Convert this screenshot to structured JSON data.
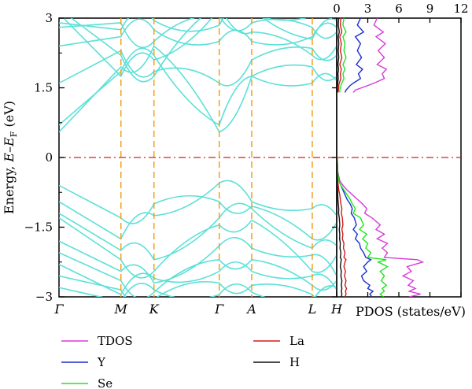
{
  "chart_data": [
    {
      "type": "line",
      "panel": "band structure",
      "ylabel_main": "Energy, ",
      "ylabel_e": "E",
      "ylabel_dash": "–",
      "ylabel_ef": "E",
      "ylabel_sub": "F",
      "ylabel_unit": " (eV)",
      "ylim": [
        -3,
        3
      ],
      "yticks": [
        {
          "value": 3,
          "label": "3"
        },
        {
          "value": 1.5,
          "label": "1.5"
        },
        {
          "value": 0,
          "label": "0"
        },
        {
          "value": -1.5,
          "label": "−1.5"
        },
        {
          "value": -3,
          "label": "−3"
        }
      ],
      "kpath": [
        {
          "label": "Γ",
          "k": 0.0
        },
        {
          "label": "M",
          "k": 0.223
        },
        {
          "label": "K",
          "k": 0.342
        },
        {
          "label": "Γ",
          "k": 0.577
        },
        {
          "label": "A",
          "k": 0.694
        },
        {
          "label": "L",
          "k": 0.912
        },
        {
          "label": "H",
          "k": 1.0
        }
      ],
      "fermi_level": 0,
      "band_color": "#5ce0d8",
      "band_highlights": {
        "conduction_band_minimum": 0.55,
        "valence_band_maximum": -0.55
      }
    },
    {
      "type": "line",
      "panel": "PDOS",
      "xlabel": "PDOS (states/eV)",
      "xlim": [
        0,
        12
      ],
      "xticks": [
        {
          "value": 0,
          "label": "0"
        },
        {
          "value": 3,
          "label": "3"
        },
        {
          "value": 6,
          "label": "6"
        },
        {
          "value": 9,
          "label": "9"
        },
        {
          "value": 12,
          "label": "12"
        }
      ],
      "series": [
        {
          "name": "TDOS",
          "color": "#d83ad8",
          "x": [
            0.05,
            0.1,
            0.3,
            0.6,
            1.0,
            1.5,
            2.0,
            2.5,
            2.9,
            2.7,
            3.4,
            4.2,
            3.8,
            4.6,
            3.9,
            4.9,
            4.4,
            4.9,
            4.6,
            7.8,
            8.3,
            6.8,
            7.2,
            6.4,
            7.4,
            6.9,
            7.6,
            7.0,
            8.1,
            7.0
          ],
          "y": [
            0,
            -0.3,
            -0.5,
            -0.6,
            -0.7,
            -0.8,
            -0.9,
            -1.0,
            -1.1,
            -1.2,
            -1.3,
            -1.45,
            -1.55,
            -1.65,
            -1.75,
            -1.85,
            -1.95,
            -2.05,
            -2.15,
            -2.2,
            -2.25,
            -2.35,
            -2.45,
            -2.55,
            -2.65,
            -2.75,
            -2.82,
            -2.88,
            -2.94,
            -3.0
          ]
        },
        {
          "name": "Y",
          "color": "#1a2fd0",
          "x": [
            0.05,
            0.1,
            0.2,
            0.4,
            0.6,
            0.8,
            1.0,
            1.3,
            1.5,
            1.4,
            1.7,
            1.9,
            1.6,
            2.0,
            1.8,
            2.2,
            2.3,
            2.6,
            2.8,
            3.3,
            3.0,
            2.6,
            2.9,
            2.4,
            2.6,
            3.2,
            3.0,
            3.5,
            3.2,
            3.4
          ],
          "y": [
            0,
            -0.3,
            -0.5,
            -0.6,
            -0.7,
            -0.8,
            -0.9,
            -1.0,
            -1.1,
            -1.2,
            -1.3,
            -1.45,
            -1.55,
            -1.65,
            -1.75,
            -1.85,
            -1.95,
            -2.05,
            -2.15,
            -2.2,
            -2.25,
            -2.35,
            -2.45,
            -2.55,
            -2.65,
            -2.75,
            -2.82,
            -2.88,
            -2.94,
            -3.0
          ]
        },
        {
          "name": "Se",
          "color": "#1ee61e",
          "x": [
            0.05,
            0.1,
            0.2,
            0.4,
            0.7,
            1.0,
            1.3,
            1.5,
            1.8,
            1.6,
            2.3,
            2.6,
            2.2,
            2.9,
            2.5,
            3.0,
            2.8,
            3.3,
            3.0,
            4.8,
            4.0,
            4.9,
            4.2,
            4.6,
            4.3,
            4.8,
            4.4,
            4.6,
            4.2,
            4.5
          ],
          "y": [
            0,
            -0.3,
            -0.5,
            -0.6,
            -0.7,
            -0.8,
            -0.9,
            -1.0,
            -1.1,
            -1.2,
            -1.3,
            -1.45,
            -1.55,
            -1.65,
            -1.75,
            -1.85,
            -1.95,
            -2.05,
            -2.15,
            -2.2,
            -2.25,
            -2.35,
            -2.45,
            -2.55,
            -2.65,
            -2.75,
            -2.82,
            -2.88,
            -2.94,
            -3.0
          ]
        },
        {
          "name": "La",
          "color": "#d41a1a",
          "x": [
            0.02,
            0.05,
            0.1,
            0.15,
            0.2,
            0.3,
            0.35,
            0.4,
            0.5,
            0.45,
            0.55,
            0.6,
            0.5,
            0.6,
            0.55,
            0.7,
            0.65,
            0.8,
            0.7,
            0.9,
            0.8,
            0.7,
            0.85,
            0.75,
            0.9,
            0.8,
            0.95,
            0.85,
            0.9,
            0.8
          ],
          "y": [
            0,
            -0.3,
            -0.5,
            -0.6,
            -0.7,
            -0.8,
            -0.9,
            -1.0,
            -1.1,
            -1.2,
            -1.3,
            -1.45,
            -1.55,
            -1.65,
            -1.75,
            -1.85,
            -1.95,
            -2.05,
            -2.15,
            -2.2,
            -2.25,
            -2.35,
            -2.45,
            -2.55,
            -2.65,
            -2.75,
            -2.82,
            -2.88,
            -2.94,
            -3.0
          ]
        },
        {
          "name": "H",
          "color": "#111111",
          "x": [
            0.01,
            0.02,
            0.03,
            0.05,
            0.08,
            0.1,
            0.12,
            0.15,
            0.2,
            0.18,
            0.25,
            0.3,
            0.25,
            0.3,
            0.28,
            0.35,
            0.32,
            0.4,
            0.35,
            0.45,
            0.4,
            0.35,
            0.45,
            0.4,
            0.5,
            0.45,
            0.5,
            0.45,
            0.5,
            0.45
          ],
          "y": [
            0,
            -0.3,
            -0.5,
            -0.6,
            -0.7,
            -0.8,
            -0.9,
            -1.0,
            -1.1,
            -1.2,
            -1.3,
            -1.45,
            -1.55,
            -1.65,
            -1.75,
            -1.85,
            -1.95,
            -2.05,
            -2.15,
            -2.2,
            -2.25,
            -2.35,
            -2.45,
            -2.55,
            -2.65,
            -2.75,
            -2.82,
            -2.88,
            -2.94,
            -3.0
          ]
        }
      ],
      "upper_series": [
        {
          "name": "TDOS",
          "color": "#d83ad8",
          "x": [
            3.9,
            3.6,
            4.5,
            3.8,
            4.7,
            4.0,
            4.6,
            3.9,
            4.8,
            4.4,
            4.6,
            3.6,
            3.0,
            2.4,
            1.8,
            1.6
          ],
          "y": [
            3.0,
            2.85,
            2.7,
            2.6,
            2.45,
            2.3,
            2.15,
            2.0,
            1.9,
            1.8,
            1.7,
            1.6,
            1.55,
            1.5,
            1.45,
            1.4
          ]
        },
        {
          "name": "Y",
          "color": "#1a2fd0",
          "x": [
            2.3,
            2.0,
            2.6,
            1.8,
            2.3,
            2.0,
            2.4,
            1.9,
            2.5,
            2.1,
            2.3,
            1.6,
            1.3,
            1.1,
            0.9,
            0.8
          ],
          "y": [
            3.0,
            2.85,
            2.7,
            2.6,
            2.45,
            2.3,
            2.15,
            2.0,
            1.9,
            1.8,
            1.7,
            1.6,
            1.55,
            1.5,
            1.45,
            1.4
          ]
        },
        {
          "name": "Se",
          "color": "#1ee61e",
          "x": [
            0.7,
            0.6,
            0.9,
            0.6,
            0.8,
            0.7,
            0.9,
            0.6,
            0.8,
            0.6,
            0.7,
            0.5,
            0.4,
            0.35,
            0.3,
            0.3
          ],
          "y": [
            3.0,
            2.85,
            2.7,
            2.6,
            2.45,
            2.3,
            2.15,
            2.0,
            1.9,
            1.8,
            1.7,
            1.6,
            1.55,
            1.5,
            1.45,
            1.4
          ]
        },
        {
          "name": "La",
          "color": "#d41a1a",
          "x": [
            0.4,
            0.35,
            0.5,
            0.3,
            0.45,
            0.35,
            0.5,
            0.3,
            0.45,
            0.35,
            0.4,
            0.25,
            0.2,
            0.2,
            0.15,
            0.15
          ],
          "y": [
            3.0,
            2.85,
            2.7,
            2.6,
            2.45,
            2.3,
            2.15,
            2.0,
            1.9,
            1.8,
            1.7,
            1.6,
            1.55,
            1.5,
            1.45,
            1.4
          ]
        },
        {
          "name": "H",
          "color": "#111111",
          "x": [
            0.2,
            0.15,
            0.25,
            0.15,
            0.2,
            0.15,
            0.2,
            0.12,
            0.18,
            0.12,
            0.15,
            0.1,
            0.08,
            0.07,
            0.06,
            0.05
          ],
          "y": [
            3.0,
            2.85,
            2.7,
            2.6,
            2.45,
            2.3,
            2.15,
            2.0,
            1.9,
            1.8,
            1.7,
            1.6,
            1.55,
            1.5,
            1.45,
            1.4
          ]
        }
      ]
    }
  ],
  "legend": {
    "left": [
      {
        "name": "TDOS",
        "color": "#d83ad8"
      },
      {
        "name": "Y",
        "color": "#1a2fd0"
      },
      {
        "name": "Se",
        "color": "#1ee61e"
      }
    ],
    "right": [
      {
        "name": "La",
        "color": "#d41a1a"
      },
      {
        "name": "H",
        "color": "#111111"
      }
    ]
  }
}
